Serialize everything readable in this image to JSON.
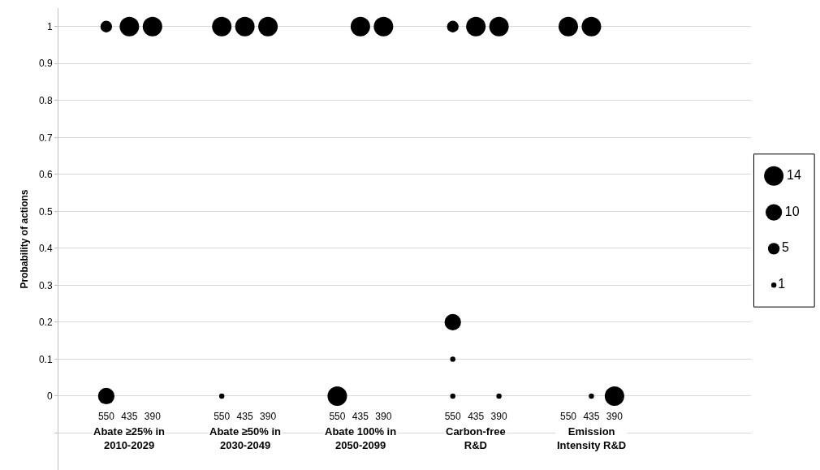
{
  "chart_data": {
    "type": "bubble",
    "ylabel": "Probability of actions",
    "categories": [
      "550",
      "435",
      "390",
      null,
      null,
      "550",
      "435",
      "390",
      null,
      null,
      "550",
      "435",
      "390",
      null,
      null,
      "550",
      "435",
      "390",
      null,
      null,
      "550",
      "435",
      "390",
      null,
      null
    ],
    "series": [
      {
        "color": "#000000",
        "values": [
          1,
          1,
          1,
          null,
          null,
          1,
          1,
          1,
          null,
          null,
          null,
          1,
          1,
          null,
          null,
          1,
          1,
          1,
          null,
          null,
          1,
          1,
          null,
          null,
          null
        ],
        "sizes": [
          5,
          14,
          14,
          null,
          null,
          14,
          14,
          14,
          null,
          null,
          null,
          14,
          14,
          null,
          null,
          5,
          14,
          14,
          null,
          null,
          14,
          14,
          null,
          null,
          null
        ]
      },
      {
        "color": "#000000",
        "values": [
          null,
          null,
          null,
          null,
          null,
          null,
          null,
          null,
          null,
          null,
          null,
          null,
          null,
          null,
          null,
          0.2,
          null,
          null,
          null,
          null,
          null,
          null,
          null,
          null,
          null
        ],
        "sizes": [
          null,
          null,
          null,
          null,
          null,
          null,
          null,
          null,
          null,
          null,
          null,
          null,
          null,
          null,
          null,
          10,
          null,
          null,
          null,
          null,
          null,
          null,
          null,
          null,
          null
        ]
      },
      {
        "color": "#000000",
        "values": [
          null,
          null,
          null,
          null,
          null,
          null,
          null,
          null,
          null,
          null,
          null,
          null,
          null,
          null,
          null,
          0.1,
          null,
          null,
          null,
          null,
          null,
          null,
          null,
          null,
          null
        ],
        "sizes": [
          null,
          null,
          null,
          null,
          null,
          null,
          null,
          null,
          null,
          null,
          null,
          null,
          null,
          null,
          null,
          1,
          null,
          null,
          null,
          null,
          null,
          null,
          null,
          null,
          null
        ]
      },
      {
        "color": "#000000",
        "values": [
          0,
          null,
          null,
          null,
          null,
          0,
          null,
          null,
          null,
          null,
          0,
          null,
          null,
          null,
          null,
          0,
          null,
          0,
          null,
          null,
          null,
          0,
          0,
          null,
          null
        ],
        "sizes": [
          10,
          null,
          null,
          null,
          null,
          1,
          null,
          null,
          null,
          null,
          14,
          null,
          null,
          null,
          null,
          1,
          null,
          1,
          null,
          null,
          null,
          1,
          14,
          null,
          null
        ]
      }
    ],
    "size_legend": [
      14,
      10,
      5,
      1
    ],
    "annotations": [
      "Abate ≥25% in\n2010-2029",
      "Abate ≥50% in\n2030-2049",
      "Abate 100% in\n2050-2099",
      "Carbon-free\nR&D",
      "Emission\nIntensity R&D"
    ],
    "ylim": [
      -0.2,
      1.05
    ],
    "yticks": [
      {
        "value": -0.1,
        "label": null
      },
      0,
      0.1,
      0.2,
      0.3,
      0.4,
      0.5,
      0.6,
      0.7,
      0.8,
      0.9,
      1
    ],
    "grid": "y"
  }
}
